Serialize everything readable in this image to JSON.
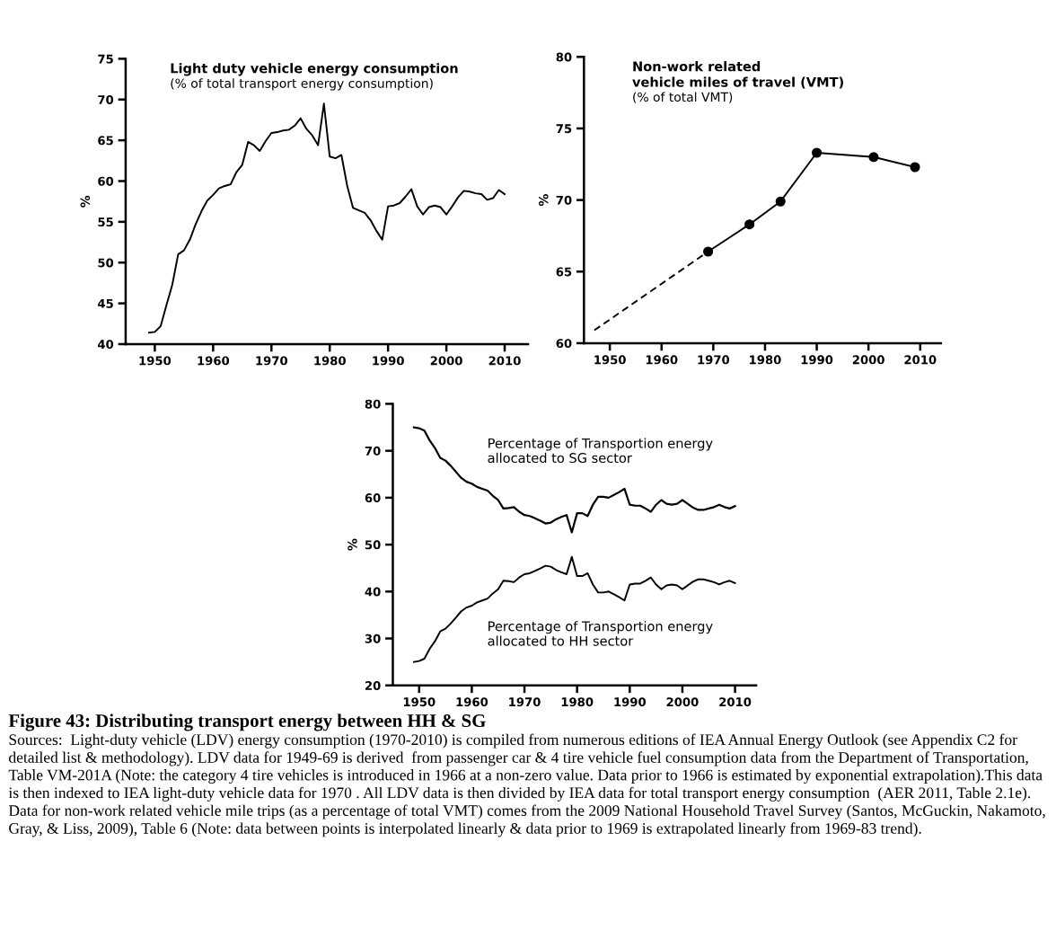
{
  "chart_data": [
    {
      "type": "line",
      "title": "Light duty vehicle energy consumption",
      "subtitle": "(% of total transport energy consumption)",
      "ylabel": "%",
      "xlim": [
        1945,
        2014
      ],
      "xticks": [
        1950,
        1960,
        1970,
        1980,
        1990,
        2000,
        2010
      ],
      "ylim": [
        40,
        75
      ],
      "yticks": [
        40,
        45,
        50,
        55,
        60,
        65,
        70,
        75
      ],
      "grid": false,
      "series": [
        {
          "color": "#000000",
          "marker": "none",
          "line_style": "solid",
          "x": [
            1949,
            1950,
            1951,
            1952,
            1953,
            1954,
            1955,
            1956,
            1957,
            1958,
            1959,
            1960,
            1961,
            1962,
            1963,
            1964,
            1965,
            1966,
            1967,
            1968,
            1969,
            1970,
            1971,
            1972,
            1973,
            1974,
            1975,
            1976,
            1977,
            1978,
            1979,
            1980,
            1981,
            1982,
            1983,
            1984,
            1985,
            1986,
            1987,
            1988,
            1989,
            1990,
            1991,
            1992,
            1993,
            1994,
            1995,
            1996,
            1997,
            1998,
            1999,
            2000,
            2001,
            2002,
            2003,
            2004,
            2005,
            2006,
            2007,
            2008,
            2009,
            2010
          ],
          "values": [
            41.4,
            41.5,
            42.2,
            44.8,
            47.3,
            51.0,
            51.5,
            52.8,
            54.7,
            56.3,
            57.6,
            58.3,
            59.1,
            59.4,
            59.6,
            61.1,
            62.0,
            64.8,
            64.4,
            63.7,
            64.9,
            65.9,
            66.0,
            66.2,
            66.3,
            66.8,
            67.7,
            66.4,
            65.6,
            64.4,
            69.5,
            63.0,
            62.8,
            63.2,
            59.4,
            56.7,
            56.4,
            56.1,
            55.2,
            53.9,
            52.8,
            56.9,
            57.0,
            57.3,
            58.1,
            59.0,
            56.9,
            55.9,
            56.8,
            57.0,
            56.8,
            55.9,
            56.9,
            58.0,
            58.8,
            58.7,
            58.5,
            58.4,
            57.7,
            57.9,
            58.9,
            58.4
          ]
        }
      ]
    },
    {
      "type": "line",
      "title": "Non-work related\nvehicle miles of travel (VMT)",
      "subtitle": "(% of total VMT)",
      "ylabel": "%",
      "xlim": [
        1945,
        2014
      ],
      "xticks": [
        1950,
        1960,
        1970,
        1980,
        1990,
        2000,
        2010
      ],
      "ylim": [
        60,
        80
      ],
      "yticks": [
        60,
        65,
        70,
        75,
        80
      ],
      "grid": false,
      "series": [
        {
          "color": "#000000",
          "line_style": "dashed",
          "x": [
            1947,
            1969
          ],
          "values": [
            60.9,
            66.4
          ]
        },
        {
          "color": "#000000",
          "marker": "circle",
          "line_style": "solid",
          "x": [
            1969,
            1977,
            1983,
            1990,
            2001,
            2009
          ],
          "values": [
            66.4,
            68.3,
            69.9,
            73.3,
            73.0,
            72.3
          ]
        }
      ]
    },
    {
      "type": "line",
      "ylabel": "%",
      "xlim": [
        1945,
        2014
      ],
      "xticks": [
        1950,
        1960,
        1970,
        1980,
        1990,
        2000,
        2010
      ],
      "ylim": [
        20,
        80
      ],
      "yticks": [
        20,
        30,
        40,
        50,
        60,
        70,
        80
      ],
      "grid": false,
      "series": [
        {
          "name": "Percentage of Transportion energy\nallocated to SG sector",
          "color": "#000000",
          "marker": "none",
          "line_style": "solid",
          "x": [
            1949,
            1950,
            1951,
            1952,
            1953,
            1954,
            1955,
            1956,
            1957,
            1958,
            1959,
            1960,
            1961,
            1962,
            1963,
            1964,
            1965,
            1966,
            1967,
            1968,
            1969,
            1970,
            1971,
            1972,
            1973,
            1974,
            1975,
            1976,
            1977,
            1978,
            1979,
            1980,
            1981,
            1982,
            1983,
            1984,
            1985,
            1986,
            1987,
            1988,
            1989,
            1990,
            1991,
            1992,
            1993,
            1994,
            1995,
            1996,
            1997,
            1998,
            1999,
            2000,
            2001,
            2002,
            2003,
            2004,
            2005,
            2006,
            2007,
            2008,
            2009,
            2010
          ],
          "values": [
            75.0,
            74.8,
            74.3,
            72.2,
            70.6,
            68.5,
            67.9,
            66.8,
            65.5,
            64.2,
            63.4,
            63.0,
            62.3,
            61.9,
            61.5,
            60.4,
            59.5,
            57.7,
            57.8,
            58.0,
            57.0,
            56.3,
            56.1,
            55.6,
            55.1,
            54.5,
            54.7,
            55.4,
            55.9,
            56.3,
            52.6,
            56.7,
            56.7,
            56.1,
            58.5,
            60.2,
            60.2,
            60.0,
            60.6,
            61.2,
            61.9,
            58.5,
            58.3,
            58.3,
            57.7,
            57.0,
            58.5,
            59.5,
            58.7,
            58.5,
            58.7,
            59.5,
            58.7,
            57.9,
            57.4,
            57.4,
            57.7,
            58.0,
            58.5,
            58.0,
            57.7,
            58.2
          ]
        },
        {
          "name": "Percentage of Transportion energy\nallocated to HH sector",
          "color": "#000000",
          "marker": "none",
          "line_style": "solid",
          "x": [
            1949,
            1950,
            1951,
            1952,
            1953,
            1954,
            1955,
            1956,
            1957,
            1958,
            1959,
            1960,
            1961,
            1962,
            1963,
            1964,
            1965,
            1966,
            1967,
            1968,
            1969,
            1970,
            1971,
            1972,
            1973,
            1974,
            1975,
            1976,
            1977,
            1978,
            1979,
            1980,
            1981,
            1982,
            1983,
            1984,
            1985,
            1986,
            1987,
            1988,
            1989,
            1990,
            1991,
            1992,
            1993,
            1994,
            1995,
            1996,
            1997,
            1998,
            1999,
            2000,
            2001,
            2002,
            2003,
            2004,
            2005,
            2006,
            2007,
            2008,
            2009,
            2010
          ],
          "values": [
            25.0,
            25.2,
            25.7,
            27.8,
            29.4,
            31.5,
            32.1,
            33.2,
            34.5,
            35.8,
            36.6,
            37.0,
            37.7,
            38.1,
            38.5,
            39.6,
            40.5,
            42.3,
            42.2,
            42.0,
            43.0,
            43.7,
            43.9,
            44.4,
            44.9,
            45.5,
            45.3,
            44.6,
            44.1,
            43.7,
            47.4,
            43.3,
            43.3,
            43.9,
            41.5,
            39.8,
            39.8,
            40.0,
            39.4,
            38.8,
            38.1,
            41.5,
            41.7,
            41.7,
            42.3,
            43.0,
            41.5,
            40.5,
            41.3,
            41.5,
            41.3,
            40.5,
            41.3,
            42.1,
            42.6,
            42.6,
            42.3,
            42.0,
            41.5,
            42.0,
            42.3,
            41.8
          ]
        }
      ],
      "annotations": [
        "Figure 43: Distributing transport energy between HH & SG",
        "Sources:  Light-duty vehicle (LDV) energy consumption (1970-2010) is compiled from numerous editions of IEA Annual Energy Outlook (see Appendix C2 for detailed list & methodology). LDV data for 1949-69 is derived  from passenger car & 4 tire vehicle fuel consumption data from the Department of Transportation, Table VM-201A (Note: the category 4 tire vehicles is introduced in 1966 at a non-zero value. Data prior to 1966 is estimated by exponential extrapolation).This data is then indexed to IEA light-duty vehicle data for 1970 . All LDV data is then divided by IEA data for total transport energy consumption  (AER 2011, Table 2.1e). Data for non-work related vehicle mile trips (as a percentage of total VMT) comes from the 2009 National Household Travel Survey (Santos, McGuckin, Nakamoto, Gray, & Liss, 2009), Table 6 (Note: data between points is interpolated linearly & data prior to 1969 is extrapolated linearly from 1969-83 trend)."
      ]
    }
  ]
}
